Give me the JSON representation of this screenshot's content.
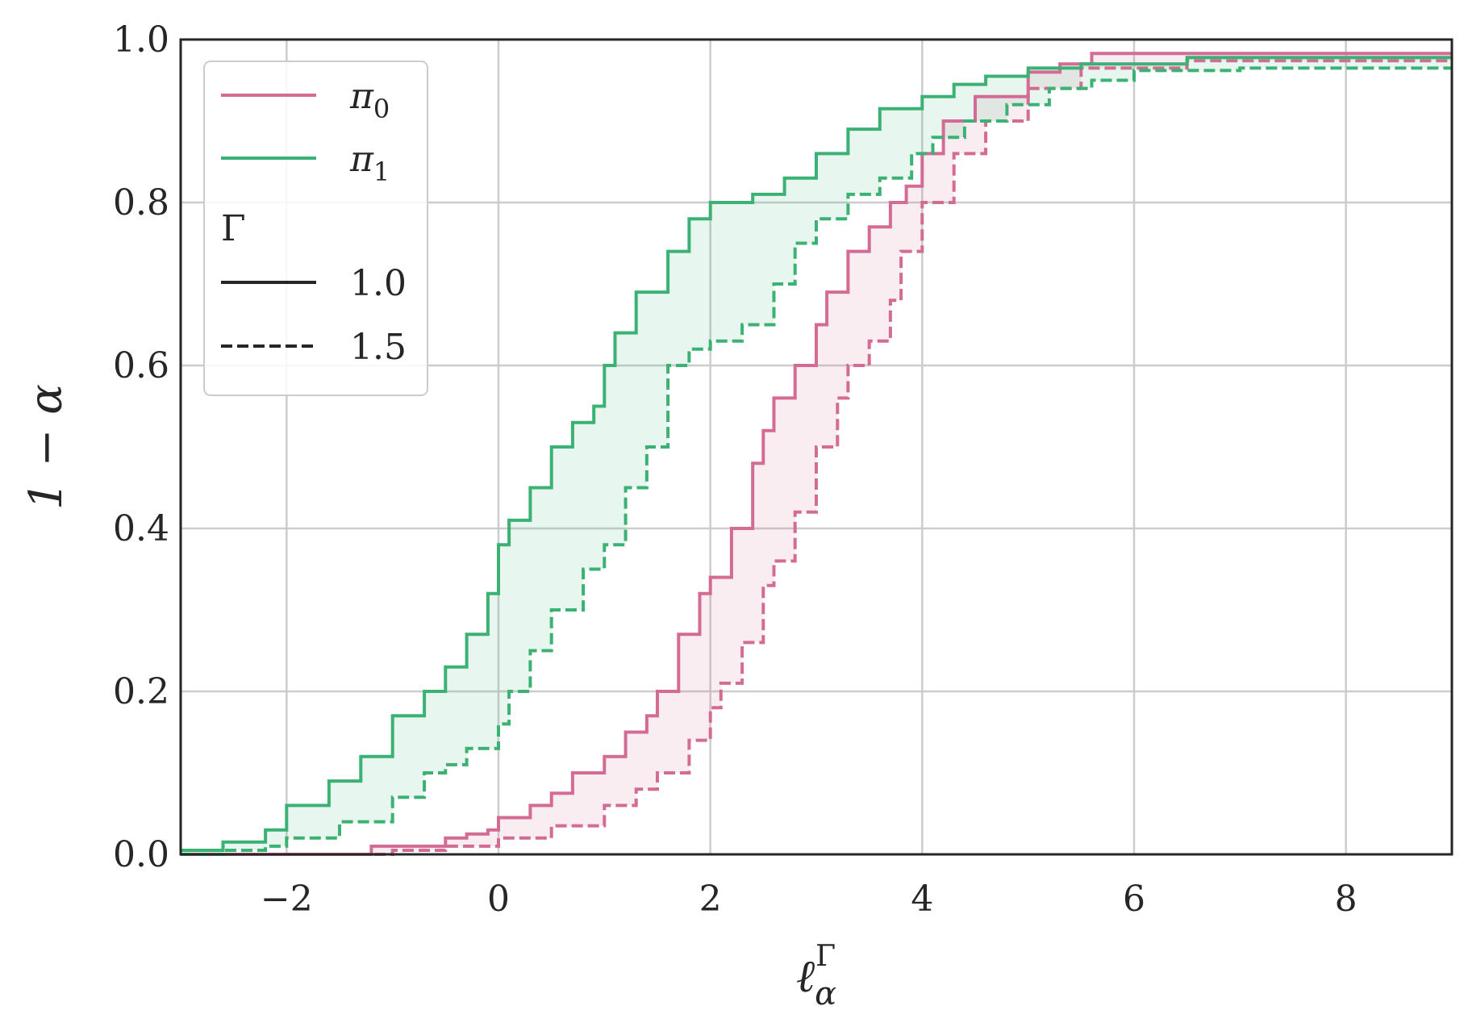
{
  "chart_data": {
    "type": "line",
    "xlabel": "ℓ",
    "xlabel_sub": "α",
    "xlabel_sup": "Γ",
    "ylabel": "1 − α",
    "xlim": [
      -3,
      9
    ],
    "ylim": [
      0,
      1
    ],
    "xticks": [
      -2,
      0,
      2,
      4,
      6,
      8
    ],
    "xtick_labels": [
      "−2",
      "0",
      "2",
      "4",
      "6",
      "8"
    ],
    "yticks": [
      0.0,
      0.2,
      0.4,
      0.6,
      0.8,
      1.0
    ],
    "ytick_labels": [
      "0.0",
      "0.2",
      "0.4",
      "0.6",
      "0.8",
      "1.0"
    ],
    "grid": true,
    "legend": {
      "position": "top-left",
      "entries": [
        {
          "label": "π",
          "sub": "0",
          "kind": "color",
          "color": "#d36b94"
        },
        {
          "label": "π",
          "sub": "1",
          "kind": "color",
          "color": "#3bb273"
        }
      ],
      "style_title": "Γ",
      "style_entries": [
        {
          "label": "1.0",
          "dash": "solid"
        },
        {
          "label": "1.5",
          "dash": "dashed"
        }
      ]
    },
    "series": [
      {
        "policy": "pi0",
        "gamma": "1.0",
        "color": "#d36b94",
        "dash": "solid",
        "x": [
          -3.0,
          -2.0,
          -1.5,
          -1.2,
          -1.0,
          -0.5,
          -0.3,
          -0.1,
          0.0,
          0.3,
          0.5,
          0.7,
          1.0,
          1.2,
          1.4,
          1.5,
          1.7,
          1.9,
          2.0,
          2.2,
          2.4,
          2.5,
          2.6,
          2.8,
          3.0,
          3.1,
          3.3,
          3.5,
          3.7,
          3.85,
          4.0,
          4.2,
          4.5,
          5.0,
          5.3,
          5.6,
          7.0,
          9.0
        ],
        "y": [
          0.0,
          0.0,
          0.0,
          0.01,
          0.01,
          0.02,
          0.025,
          0.03,
          0.045,
          0.06,
          0.075,
          0.1,
          0.12,
          0.15,
          0.17,
          0.2,
          0.27,
          0.32,
          0.34,
          0.4,
          0.48,
          0.52,
          0.56,
          0.6,
          0.65,
          0.69,
          0.74,
          0.77,
          0.8,
          0.82,
          0.86,
          0.9,
          0.93,
          0.96,
          0.97,
          0.983,
          0.983,
          0.983
        ]
      },
      {
        "policy": "pi0",
        "gamma": "1.5",
        "color": "#d36b94",
        "dash": "dashed",
        "x": [
          -3.0,
          -2.0,
          -1.2,
          -1.0,
          -0.5,
          0.0,
          0.5,
          1.0,
          1.3,
          1.5,
          1.8,
          2.0,
          2.1,
          2.3,
          2.5,
          2.6,
          2.8,
          3.0,
          3.2,
          3.3,
          3.5,
          3.7,
          3.8,
          4.0,
          4.3,
          4.6,
          5.0,
          5.5,
          6.5,
          9.0
        ],
        "y": [
          0.0,
          0.0,
          0.0,
          0.005,
          0.01,
          0.02,
          0.035,
          0.06,
          0.08,
          0.1,
          0.14,
          0.18,
          0.21,
          0.26,
          0.33,
          0.36,
          0.42,
          0.5,
          0.56,
          0.6,
          0.63,
          0.68,
          0.74,
          0.8,
          0.86,
          0.9,
          0.94,
          0.965,
          0.974,
          0.974
        ]
      },
      {
        "policy": "pi1",
        "gamma": "1.0",
        "color": "#3bb273",
        "dash": "solid",
        "x": [
          -3.0,
          -2.6,
          -2.2,
          -2.0,
          -1.6,
          -1.3,
          -1.0,
          -0.7,
          -0.5,
          -0.3,
          -0.1,
          0.0,
          0.1,
          0.3,
          0.5,
          0.7,
          0.9,
          1.0,
          1.1,
          1.3,
          1.6,
          1.8,
          2.0,
          2.4,
          2.7,
          3.0,
          3.3,
          3.6,
          4.0,
          4.3,
          4.6,
          5.0,
          5.5,
          6.5,
          9.0
        ],
        "y": [
          0.005,
          0.015,
          0.03,
          0.06,
          0.09,
          0.12,
          0.17,
          0.2,
          0.23,
          0.27,
          0.32,
          0.38,
          0.41,
          0.45,
          0.5,
          0.53,
          0.55,
          0.6,
          0.64,
          0.69,
          0.74,
          0.78,
          0.8,
          0.81,
          0.83,
          0.86,
          0.89,
          0.915,
          0.93,
          0.945,
          0.955,
          0.965,
          0.97,
          0.978,
          0.978
        ]
      },
      {
        "policy": "pi1",
        "gamma": "1.5",
        "color": "#3bb273",
        "dash": "dashed",
        "x": [
          -3.0,
          -2.6,
          -2.2,
          -2.0,
          -1.5,
          -1.0,
          -0.7,
          -0.5,
          -0.3,
          0.0,
          0.1,
          0.3,
          0.5,
          0.8,
          1.0,
          1.2,
          1.4,
          1.6,
          1.8,
          2.0,
          2.3,
          2.6,
          2.8,
          3.0,
          3.3,
          3.6,
          3.9,
          4.1,
          4.4,
          4.8,
          5.2,
          5.6,
          6.0,
          7.0,
          9.0
        ],
        "y": [
          0.0,
          0.005,
          0.01,
          0.02,
          0.04,
          0.07,
          0.1,
          0.11,
          0.13,
          0.16,
          0.2,
          0.25,
          0.3,
          0.35,
          0.38,
          0.45,
          0.5,
          0.6,
          0.62,
          0.63,
          0.65,
          0.7,
          0.75,
          0.78,
          0.81,
          0.83,
          0.86,
          0.88,
          0.9,
          0.92,
          0.94,
          0.95,
          0.962,
          0.965,
          0.965
        ]
      }
    ],
    "bands": [
      {
        "policy": "pi0",
        "color": "#d36b94",
        "opacity": 0.12,
        "between": [
          "pi0-1.0",
          "pi0-1.5"
        ]
      },
      {
        "policy": "pi1",
        "color": "#3bb273",
        "opacity": 0.12,
        "between": [
          "pi1-1.0",
          "pi1-1.5"
        ]
      }
    ]
  }
}
